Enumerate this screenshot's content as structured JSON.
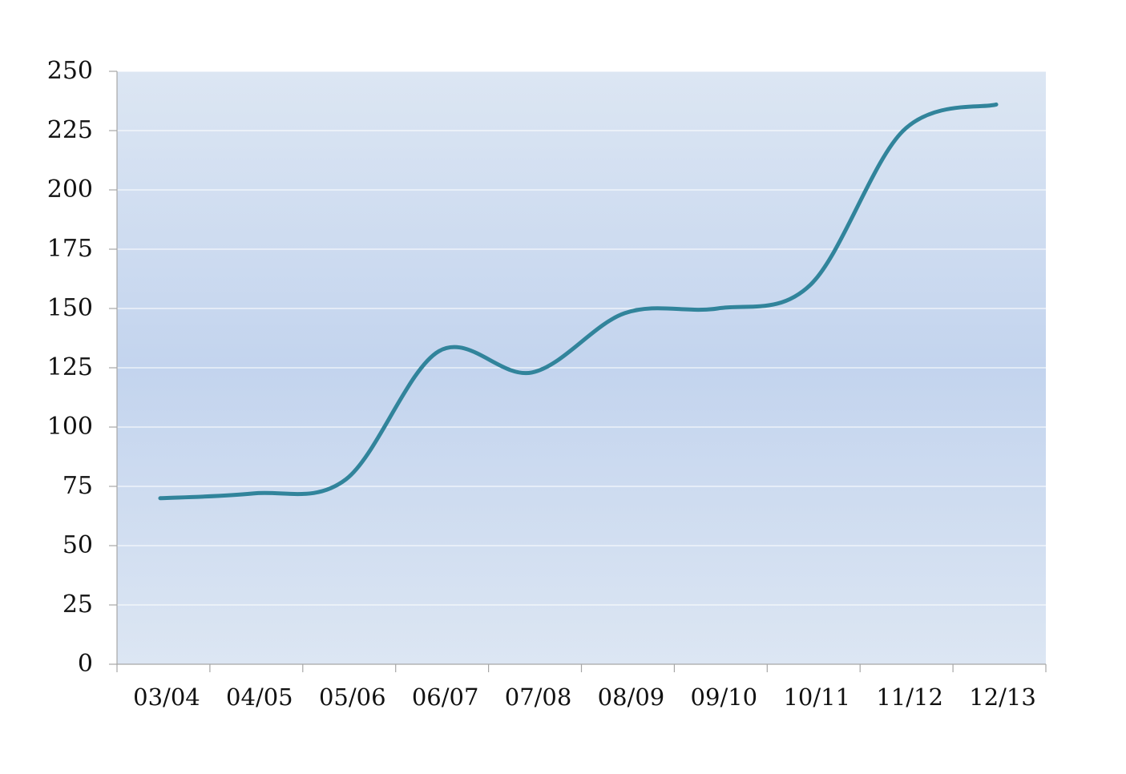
{
  "chart_data": {
    "type": "line",
    "title": "",
    "xlabel": "",
    "ylabel": "",
    "categories": [
      "03/04",
      "04/05",
      "05/06",
      "06/07",
      "07/08",
      "08/09",
      "09/10",
      "10/11",
      "11/12",
      "12/13"
    ],
    "series": [
      {
        "values": [
          70,
          72,
          78,
          132,
          123,
          148,
          150,
          160,
          225,
          236
        ]
      }
    ],
    "ylim": [
      0,
      250
    ],
    "yticks": [
      0,
      25,
      50,
      75,
      100,
      125,
      150,
      175,
      200,
      225,
      250
    ],
    "grid": true,
    "legend": "none",
    "smooth": true,
    "colors": {
      "line": "#31849b",
      "plot_bg_edge": "#dce6f3",
      "plot_bg_center": "#c3d4ee",
      "gridline": "#ffffff",
      "axis": "#a6a6a6"
    }
  }
}
